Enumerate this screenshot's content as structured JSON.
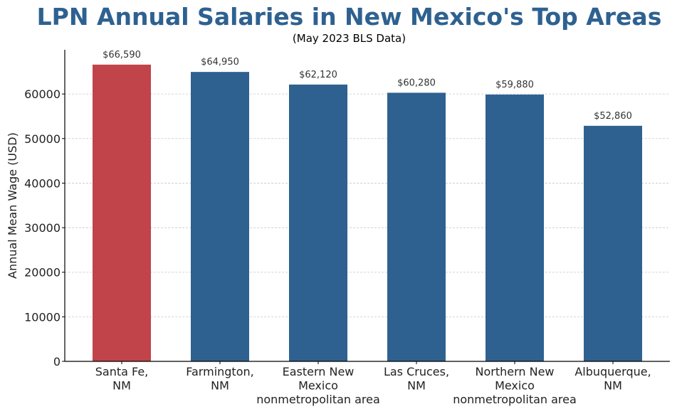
{
  "chart_data": {
    "type": "bar",
    "title": "LPN Annual Salaries in New Mexico's Top Areas",
    "subtitle": "(May 2023 BLS Data)",
    "xlabel": "",
    "ylabel": "Annual Mean Wage (USD)",
    "categories": [
      [
        "Santa Fe,",
        "NM"
      ],
      [
        "Farmington,",
        "NM"
      ],
      [
        "Eastern New",
        "Mexico",
        "nonmetropolitan area"
      ],
      [
        "Las Cruces,",
        "NM"
      ],
      [
        "Northern New",
        "Mexico",
        "nonmetropolitan area"
      ],
      [
        "Albuquerque,",
        "NM"
      ]
    ],
    "values": [
      66590,
      64950,
      62120,
      60280,
      59880,
      52860
    ],
    "data_labels": [
      "$66,590",
      "$64,950",
      "$62,120",
      "$60,280",
      "$59,880",
      "$52,860"
    ],
    "colors": [
      "#c0444a",
      "#2e6190",
      "#2e6190",
      "#2e6190",
      "#2e6190",
      "#2e6190"
    ],
    "ylim": [
      0,
      69920
    ],
    "yticks": [
      0,
      10000,
      20000,
      30000,
      40000,
      50000,
      60000
    ],
    "ytick_labels": [
      "0",
      "10000",
      "20000",
      "30000",
      "40000",
      "50000",
      "60000"
    ],
    "grid": "y-dashed"
  }
}
